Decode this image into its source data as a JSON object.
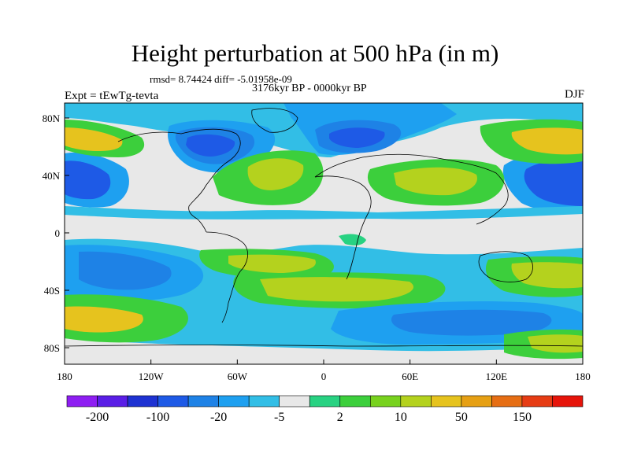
{
  "title": "Height perturbation at 500 hPa (in m)",
  "stats": "rmsd= 8.74424 diff= -5.01958e-09",
  "period": "3176kyr BP - 0000kyr BP",
  "experiment": "Expt = tEwTg-tevta",
  "season": "DJF",
  "axes": {
    "x_ticks": [
      "180",
      "120W",
      "60W",
      "0",
      "60E",
      "120E",
      "180"
    ],
    "y_ticks": [
      "80N",
      "40N",
      "0",
      "40S",
      "80S"
    ]
  },
  "colorbar": {
    "colors": [
      "#8e1ef2",
      "#5a1ee6",
      "#1e32d2",
      "#1e5ae6",
      "#1e82e6",
      "#1ea0f0",
      "#32bee6",
      "#e8e8e8",
      "#28d282",
      "#3ccf3c",
      "#78d21e",
      "#b4d21e",
      "#e6c31e",
      "#e6a014",
      "#e66e14",
      "#e63c14",
      "#e6140a"
    ],
    "labels": [
      "-200",
      "-100",
      "-20",
      "-5",
      "2",
      "10",
      "50",
      "150"
    ]
  },
  "palette": {
    "neutral": "#e8e8e8",
    "light_blue": "#32bee6",
    "mid_blue": "#1ea0f0",
    "blue": "#1e82e6",
    "dark_blue": "#1e5ae6",
    "navy": "#1e32d2",
    "teal": "#28d282",
    "green": "#3ccf3c",
    "lime": "#78d21e",
    "yellow_green": "#b4d21e",
    "gold": "#e6c31e",
    "orange": "#e6a014",
    "coast": "#000000"
  }
}
